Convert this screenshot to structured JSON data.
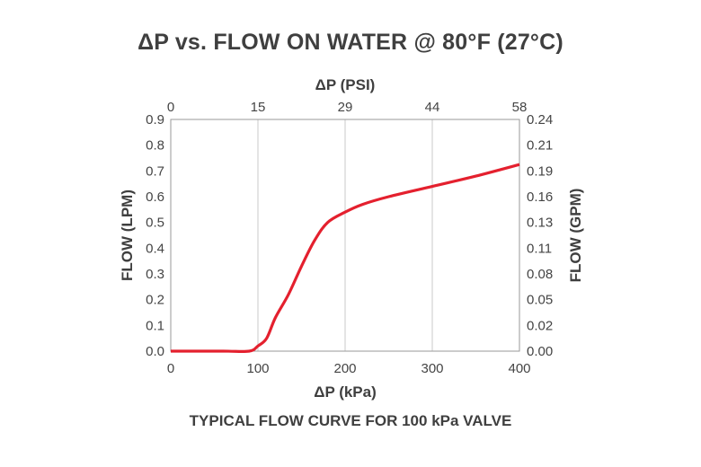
{
  "chart_data": {
    "type": "line",
    "title": "ΔP vs. FLOW ON WATER @ 80°F (27°C)",
    "caption": "TYPICAL FLOW CURVE FOR 100 kPa VALVE",
    "xlabel": "ΔP (kPa)",
    "x2label": "ΔP (PSI)",
    "ylabel": "FLOW (LPM)",
    "y2label": "FLOW (GPM)",
    "xlim": [
      0,
      400
    ],
    "ylim": [
      0,
      0.9
    ],
    "grid": true,
    "x_ticks": [
      "0",
      "100",
      "200",
      "300",
      "400"
    ],
    "x2_ticks": [
      "0",
      "15",
      "29",
      "44",
      "58"
    ],
    "y_ticks": [
      "0.0",
      "0.1",
      "0.2",
      "0.3",
      "0.4",
      "0.5",
      "0.6",
      "0.7",
      "0.8",
      "0.9"
    ],
    "y2_ticks": [
      "0.00",
      "0.02",
      "0.05",
      "0.08",
      "0.11",
      "0.13",
      "0.16",
      "0.19",
      "0.21",
      "0.24"
    ],
    "series": [
      {
        "color": "#e4202e",
        "x": [
          0,
          60,
          90,
          100,
          110,
          120,
          135,
          150,
          165,
          180,
          200,
          220,
          250,
          300,
          350,
          400
        ],
        "y": [
          0.0,
          0.0,
          0.0,
          0.02,
          0.05,
          0.13,
          0.22,
          0.33,
          0.43,
          0.5,
          0.54,
          0.57,
          0.6,
          0.64,
          0.68,
          0.725
        ]
      }
    ]
  }
}
